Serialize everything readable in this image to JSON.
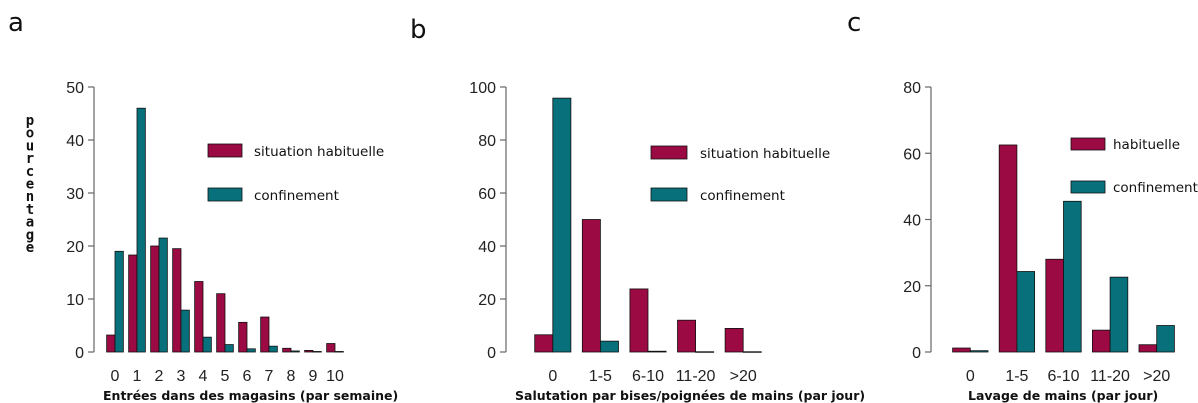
{
  "chart_data": [
    {
      "type": "bar",
      "panel": "a",
      "title": "",
      "xlabel": "Entrées dans des magasins (par semaine)",
      "ylabel": "pourcentage",
      "ylim": [
        0,
        50
      ],
      "yticks": [
        "0",
        "10",
        "20",
        "30",
        "40",
        "50"
      ],
      "categories": [
        "0",
        "1",
        "2",
        "3",
        "4",
        "5",
        "6",
        "7",
        "8",
        "9",
        "10"
      ],
      "series": [
        {
          "name": "situation habituelle",
          "color": "#9b0a43",
          "values": [
            3.2,
            18.3,
            20.0,
            19.5,
            13.3,
            11.0,
            5.6,
            6.6,
            0.7,
            0.3,
            1.6
          ]
        },
        {
          "name": "confinement",
          "color": "#08707a",
          "values": [
            19.0,
            46.0,
            21.5,
            7.9,
            2.8,
            1.4,
            0.6,
            1.1,
            0.2,
            0.1,
            0.1
          ]
        }
      ],
      "legend": "inside-right"
    },
    {
      "type": "bar",
      "panel": "b",
      "title": "",
      "xlabel": "Salutation par bises/poignées de mains (par jour)",
      "ylabel": "",
      "ylim": [
        0,
        100
      ],
      "yticks": [
        "0",
        "20",
        "40",
        "60",
        "80",
        "100"
      ],
      "categories": [
        "0",
        "1-5",
        "6-10",
        "11-20",
        ">20"
      ],
      "series": [
        {
          "name": "situation habituelle",
          "color": "#9b0a43",
          "values": [
            6.5,
            50.0,
            23.8,
            12.0,
            8.9
          ]
        },
        {
          "name": "confinement",
          "color": "#08707a",
          "values": [
            95.8,
            4.1,
            0.3,
            0.1,
            0.1
          ]
        }
      ],
      "legend": "inside-right"
    },
    {
      "type": "bar",
      "panel": "c",
      "title": "",
      "xlabel": "Lavage de mains (par jour)",
      "ylabel": "",
      "ylim": [
        0,
        80
      ],
      "yticks": [
        "0",
        "20",
        "40",
        "60",
        "80"
      ],
      "categories": [
        "0",
        "1-5",
        "6-10",
        "11-20",
        ">20"
      ],
      "series": [
        {
          "name": "habituelle",
          "color": "#9b0a43",
          "values": [
            1.2,
            62.5,
            28.0,
            6.6,
            2.2
          ]
        },
        {
          "name": "confinement",
          "color": "#08707a",
          "values": [
            0.4,
            24.3,
            45.5,
            22.6,
            8.0
          ]
        }
      ],
      "legend": "top-right"
    }
  ]
}
